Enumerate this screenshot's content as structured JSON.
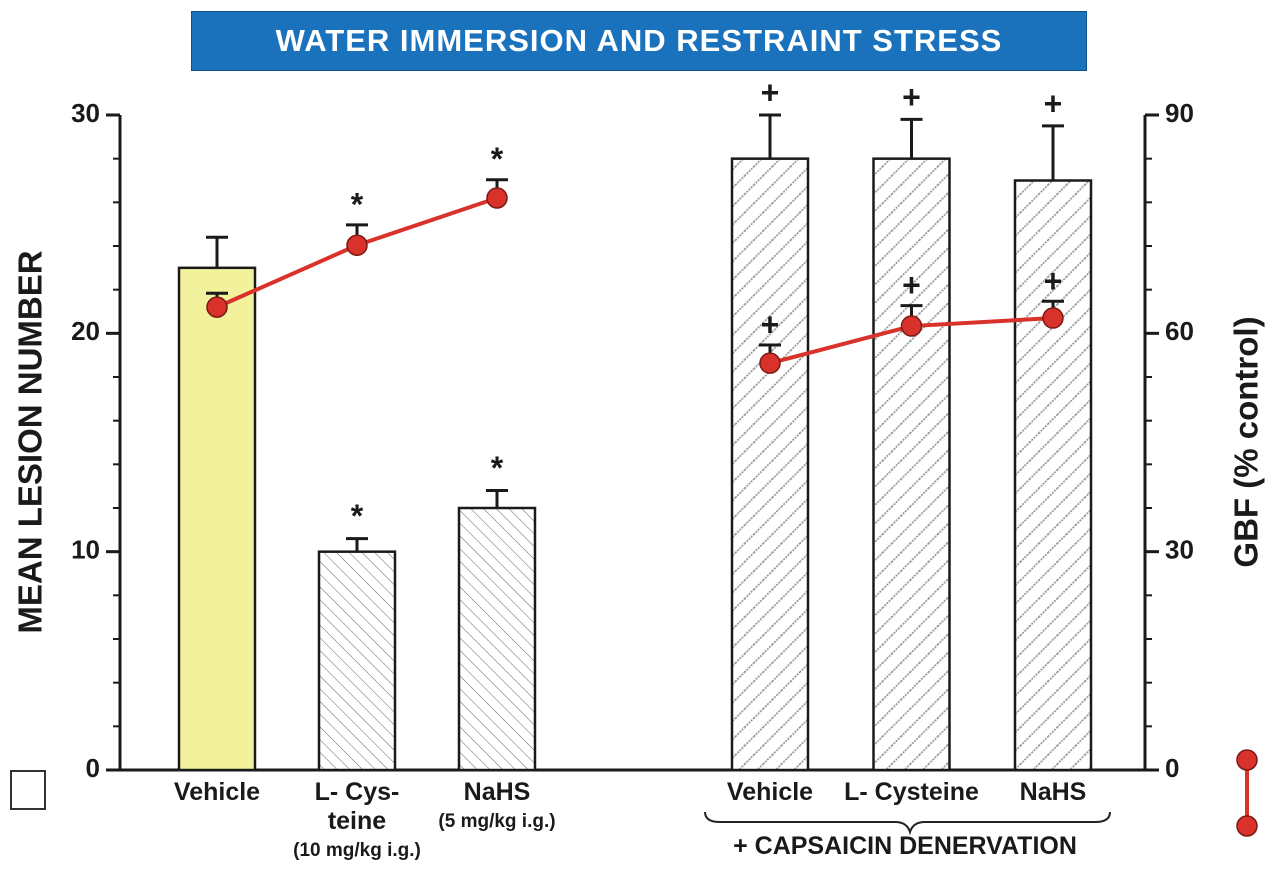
{
  "chart_data": {
    "type": "bar",
    "title": "WATER IMMERSION AND RESTRAINT STRESS",
    "ylabel": "MEAN LESION NUMBER",
    "y2label": "GBF (% control)",
    "ylim": [
      0,
      30
    ],
    "yticks": [
      0,
      10,
      20,
      30
    ],
    "yminorticks": [
      2,
      4,
      6,
      8,
      12,
      14,
      16,
      18,
      22,
      24,
      26,
      28
    ],
    "y2lim": [
      0,
      90
    ],
    "y2ticks": [
      0,
      30,
      60,
      90
    ],
    "y2minorticks": [
      6,
      12,
      18,
      24,
      36,
      42,
      48,
      54,
      66,
      72,
      78,
      84
    ],
    "line_color": "#d8322a",
    "groups": [
      {
        "categories": [
          "Vehicle",
          "L- Cys-\nteine",
          "NaHS"
        ],
        "doses": [
          null,
          "(10 mg/kg i.g.)",
          "(5 mg/kg i.g.)"
        ],
        "bar_colors": [
          "#f2f19c",
          "#ffffff",
          "#ffffff"
        ],
        "patterns": [
          "solid",
          "fine",
          "fine"
        ],
        "bars": [
          23,
          10,
          12
        ],
        "bar_errors": [
          1.4,
          0.6,
          0.8
        ],
        "bar_labels": [
          null,
          "*",
          "*"
        ],
        "gbf": [
          63.6,
          72.1,
          78.6
        ],
        "gbf_errors": [
          1.9,
          2.8,
          2.5
        ],
        "gbf_labels": [
          null,
          "*",
          "*"
        ]
      },
      {
        "label": "+ CAPSAICIN DENERVATION",
        "categories": [
          "Vehicle",
          "L- Cysteine",
          "NaHS"
        ],
        "bar_colors": [
          "#ffffff",
          "#ffffff",
          "#ffffff"
        ],
        "patterns": [
          "coarse",
          "coarse",
          "coarse"
        ],
        "bars": [
          28,
          28,
          27
        ],
        "bar_errors": [
          2.0,
          1.8,
          2.5
        ],
        "bar_labels": [
          "+",
          "+",
          "+"
        ],
        "gbf": [
          55.9,
          61.0,
          62.1
        ],
        "gbf_errors": [
          2.5,
          2.8,
          2.3
        ],
        "gbf_labels": [
          "+",
          "+",
          "+"
        ]
      }
    ]
  }
}
